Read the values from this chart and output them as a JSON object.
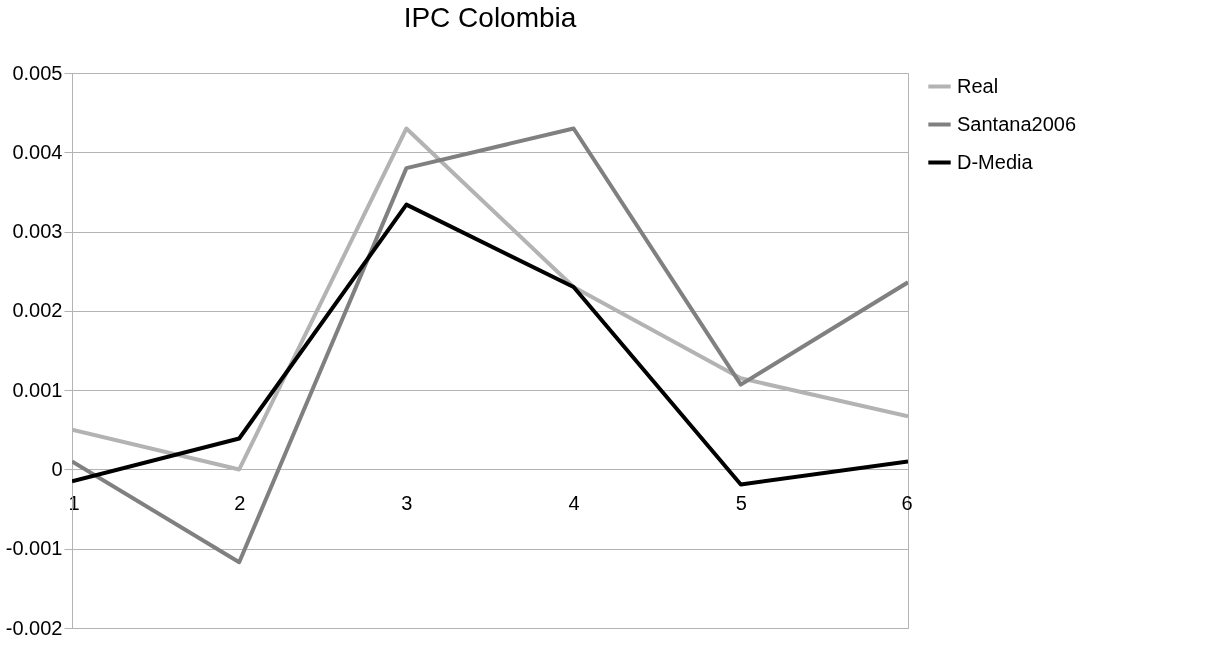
{
  "chart_data": {
    "type": "line",
    "title": "IPC Colombia",
    "x": [
      1,
      2,
      3,
      4,
      5,
      6
    ],
    "series": [
      {
        "name": "Real",
        "color": "#b3b3b3",
        "values": [
          0.0005,
          0.0,
          0.0043,
          0.0023,
          0.00115,
          0.00067
        ]
      },
      {
        "name": "Santana2006",
        "color": "#808080",
        "values": [
          0.0001,
          -0.00117,
          0.0038,
          0.0043,
          0.00107,
          0.00236
        ]
      },
      {
        "name": "D-Media",
        "color": "#000000",
        "values": [
          -0.00015,
          0.00039,
          0.00334,
          0.0023,
          -0.00019,
          0.0001
        ]
      }
    ],
    "xlim": [
      1,
      6
    ],
    "xticks": [
      1,
      2,
      3,
      4,
      5,
      6
    ],
    "ylim": [
      -0.002,
      0.005
    ],
    "yticks": [
      -0.002,
      -0.001,
      0,
      0.001,
      0.002,
      0.003,
      0.004,
      0.005
    ],
    "grid": "y",
    "legend": "right",
    "marker": "none",
    "line_style": "solid"
  }
}
